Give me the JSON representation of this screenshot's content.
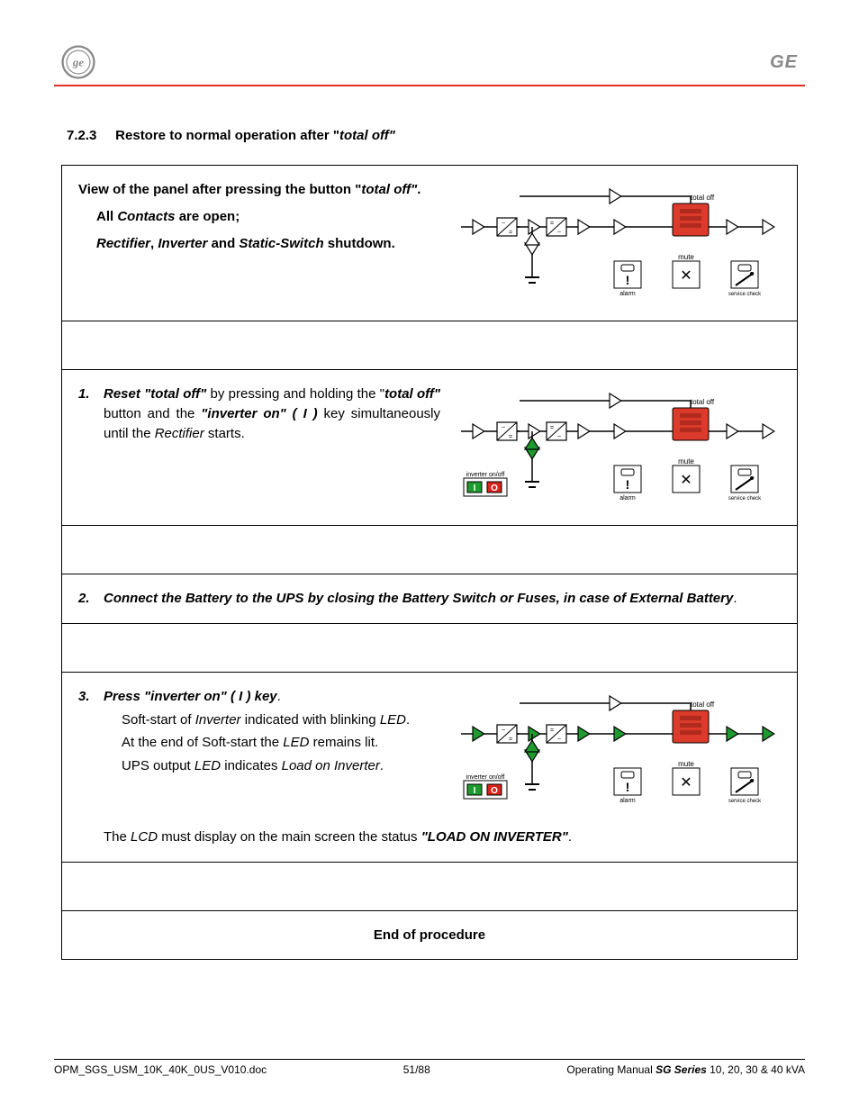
{
  "header": {
    "brand": "GE"
  },
  "section": {
    "number": "7.2.3",
    "title_plain": "Restore to normal operation after \"",
    "title_ital": "total off\""
  },
  "intro": {
    "line1_a": "View of the panel after pressing the button \"",
    "line1_b": "total off\"",
    "line1_c": ".",
    "bullet1_a": "All ",
    "bullet1_b": "Contacts",
    "bullet1_c": " are open;",
    "bullet2_a": "Rectifier",
    "bullet2_b": ", ",
    "bullet2_c": "Inverter",
    "bullet2_d": " and ",
    "bullet2_e": "Static-Switch",
    "bullet2_f": " shutdown."
  },
  "step1": {
    "num": "1.",
    "a": "Reset ",
    "b": "\"total off\"",
    "c": " by pressing and holding the \"",
    "d": "total off\"",
    "e": " button and the ",
    "f": "\"inverter on\" ( I )",
    "g": " key simultaneously until the ",
    "h": "Rectifier",
    "i": " starts."
  },
  "step2": {
    "num": "2.",
    "a": "Connect the Battery to the UPS by closing the Battery Switch or Fuses, in case of External Battery",
    "b": "."
  },
  "step3": {
    "num": "3.",
    "a": "Press ",
    "b": "\"inverter on\" ( I ) key",
    "c": ".",
    "sub1_a": "Soft-start of ",
    "sub1_b": "Inverter",
    "sub1_c": " indicated with blinking ",
    "sub1_d": "LED",
    "sub1_e": ".",
    "sub2_a": "At the end of Soft-start the ",
    "sub2_b": "LED",
    "sub2_c": " remains lit.",
    "sub3_a": "UPS output ",
    "sub3_b": "LED",
    "sub3_c": " indicates ",
    "sub3_d": "Load on Inverter",
    "sub3_e": ".",
    "lcd_a": "The ",
    "lcd_b": "LCD",
    "lcd_c": " must display on the main screen the status ",
    "lcd_d": "\"LOAD ON INVERTER\"",
    "lcd_e": "."
  },
  "end": "End of procedure",
  "footer": {
    "left": "OPM_SGS_USM_10K_40K_0US_V010.doc",
    "center": "51/88",
    "right_a": "Operating Manual ",
    "right_b": "SG Series",
    "right_c": " 10, 20, 30 & 40 kVA"
  },
  "diagram": {
    "labels": {
      "total_off": "total off",
      "mute": "mute",
      "alarm": "alarm",
      "service": "service check",
      "inverter_onoff": "inverter on/off"
    },
    "colors": {
      "line": "#000000",
      "panel_red": "#dc3a2a",
      "panel_red_dark": "#b02a1e",
      "arrow_open": "#ffffff",
      "arrow_green": "#1f9a2e",
      "btn_green": "#1f9a2e",
      "btn_red": "#d8231a",
      "box_fill": "#ffffff"
    },
    "panels": {
      "intro": {
        "show_inverter_btn": false,
        "lower_arrow_filled": false,
        "out_arrows_filled": false
      },
      "step1": {
        "show_inverter_btn": true,
        "lower_arrow_filled": true,
        "out_arrows_filled": false
      },
      "step3": {
        "show_inverter_btn": true,
        "lower_arrow_filled": true,
        "out_arrows_filled": true
      }
    }
  }
}
